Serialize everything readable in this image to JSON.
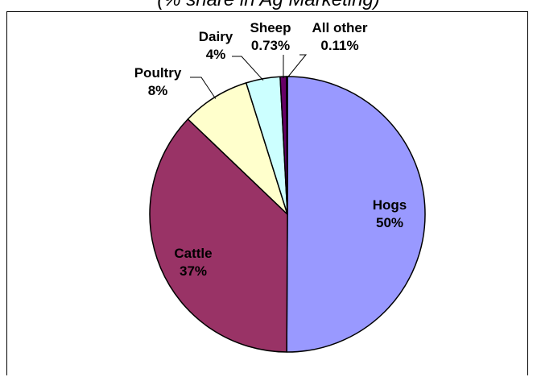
{
  "subtitle": "(% share in Ag Marketing)",
  "chart_data": {
    "type": "pie",
    "title": "",
    "subtitle": "(% share in Ag Marketing)",
    "start_angle_deg": 0,
    "direction": "clockwise",
    "slices": [
      {
        "name": "Hogs",
        "label": "50%",
        "value": 50,
        "color": "#9999ff"
      },
      {
        "name": "Cattle",
        "label": "37%",
        "value": 37,
        "color": "#993366"
      },
      {
        "name": "Poultry",
        "label": "8%",
        "value": 8,
        "color": "#ffffcc"
      },
      {
        "name": "Dairy",
        "label": "4%",
        "value": 4,
        "color": "#ccffff"
      },
      {
        "name": "Sheep",
        "label": "0.73%",
        "value": 0.73,
        "color": "#660066"
      },
      {
        "name": "All other",
        "label": "0.11%",
        "value": 0.11,
        "color": "#ff8080"
      }
    ]
  }
}
